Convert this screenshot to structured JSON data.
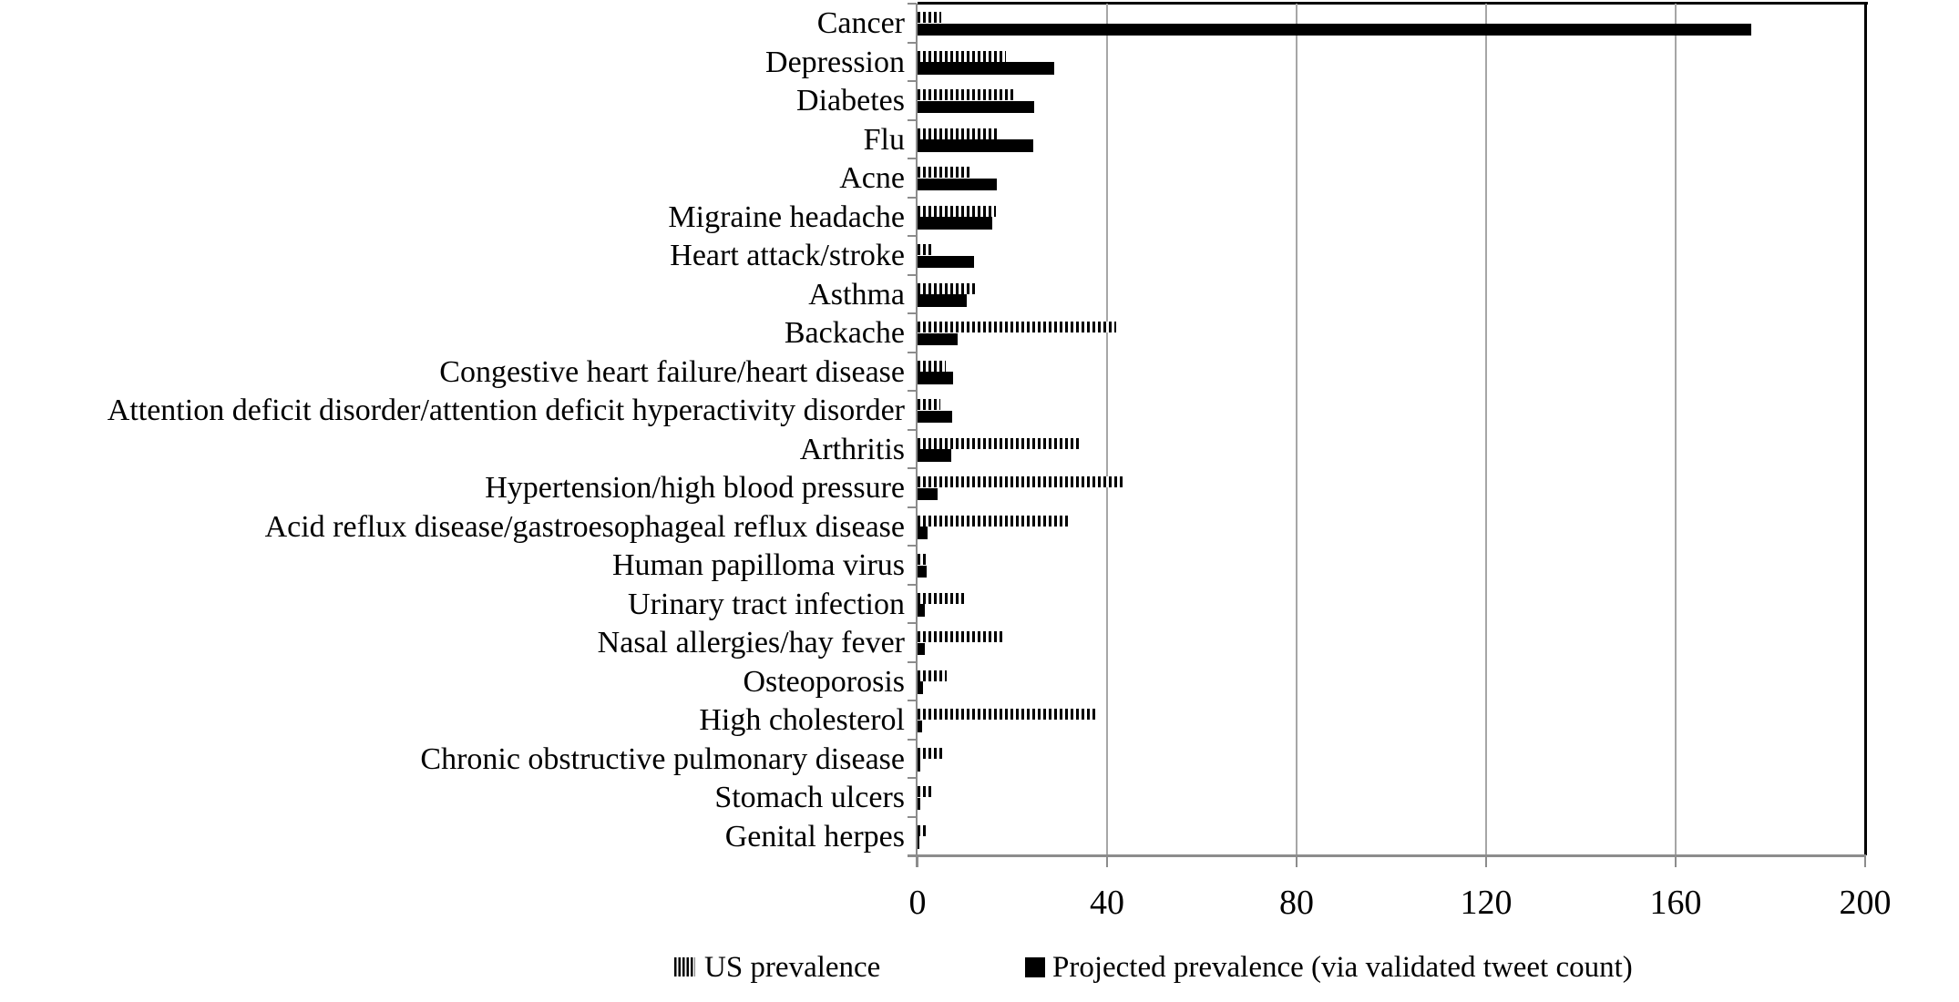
{
  "chart_data": {
    "type": "bar",
    "orientation": "horizontal",
    "title": "",
    "xlabel": "",
    "ylabel": "",
    "xlim": [
      0,
      200
    ],
    "xticks": [
      0,
      40,
      80,
      120,
      160,
      200
    ],
    "grid": "vertical gridlines at xticks",
    "legend_position": "bottom",
    "bar_color": "#000000",
    "gridline_color": "#a6a6a6",
    "axis_color": "#8c8c8c",
    "categories": [
      "Cancer",
      "Depression",
      "Diabetes",
      "Flu",
      "Acne",
      "Migraine headache",
      "Heart attack/stroke",
      "Asthma",
      "Backache",
      "Congestive heart failure/heart disease",
      "Attention deficit disorder/attention deficit hyperactivity disorder",
      "Arthritis",
      "Hypertension/high blood pressure",
      "Acid reflux disease/gastroesophageal reflux disease",
      "Human papilloma virus",
      "Urinary tract infection",
      "Nasal allergies/hay fever",
      "Osteoporosis",
      "High cholesterol",
      "Chronic obstructive pulmonary disease",
      "Stomach ulcers",
      "Genital herpes"
    ],
    "series": [
      {
        "name": "US prevalence",
        "pattern": "hatched",
        "values": [
          5.0,
          18.6,
          20.7,
          17.1,
          11.2,
          16.5,
          3.2,
          12.5,
          42.0,
          5.9,
          4.8,
          34.3,
          43.4,
          32.2,
          1.9,
          10.3,
          18.5,
          6.2,
          37.9,
          5.3,
          3.5,
          1.9
        ]
      },
      {
        "name": "Projected prevalence (via validated tweet count)",
        "pattern": "solid",
        "values": [
          176.0,
          28.9,
          24.6,
          24.4,
          16.8,
          15.7,
          11.9,
          10.4,
          8.5,
          7.5,
          7.4,
          7.1,
          4.3,
          2.2,
          2.0,
          1.5,
          1.5,
          1.2,
          0.9,
          0.6,
          0.5,
          0.4
        ]
      }
    ],
    "xtick_labels": [
      "0",
      "40",
      "80",
      "120",
      "160",
      "200"
    ]
  },
  "legend": {
    "us_label": "US prevalence",
    "projected_label": "Projected prevalence (via validated tweet count)"
  }
}
